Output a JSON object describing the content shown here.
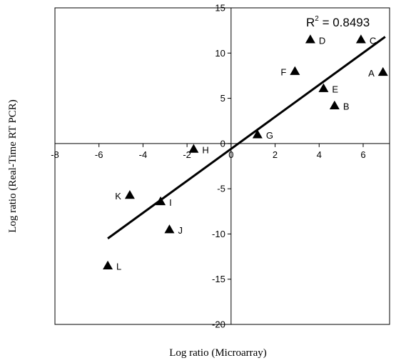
{
  "chart_data": {
    "type": "scatter",
    "title": "",
    "xlabel": "Log ratio (Microarray)",
    "ylabel": "Log ratio (Real-Time RT PCR)",
    "xlim": [
      -8,
      7.2
    ],
    "ylim": [
      -20,
      15
    ],
    "xticks": [
      -8,
      -6,
      -4,
      -2,
      0,
      2,
      4,
      6
    ],
    "yticks": [
      -20,
      -15,
      -10,
      -5,
      0,
      5,
      10,
      15
    ],
    "grid": false,
    "marker": "triangle",
    "points": [
      {
        "label": "A",
        "x": 6.9,
        "y": 7.9
      },
      {
        "label": "B",
        "x": 4.7,
        "y": 4.2
      },
      {
        "label": "C",
        "x": 5.9,
        "y": 11.5
      },
      {
        "label": "D",
        "x": 3.6,
        "y": 11.5
      },
      {
        "label": "E",
        "x": 4.2,
        "y": 6.1
      },
      {
        "label": "F",
        "x": 2.9,
        "y": 8.0
      },
      {
        "label": "G",
        "x": 1.2,
        "y": 1.0
      },
      {
        "label": "H",
        "x": -1.7,
        "y": -0.6
      },
      {
        "label": "I",
        "x": -3.2,
        "y": -6.4
      },
      {
        "label": "J",
        "x": -2.8,
        "y": -9.5
      },
      {
        "label": "K",
        "x": -4.6,
        "y": -5.7
      },
      {
        "label": "L",
        "x": -5.6,
        "y": -13.5
      }
    ],
    "trendline": {
      "x": [
        -5.6,
        7.0
      ],
      "y": [
        -10.5,
        11.8
      ],
      "r2_label": "R",
      "r2_sup": "2",
      "r2_value": " = 0.8493"
    }
  }
}
